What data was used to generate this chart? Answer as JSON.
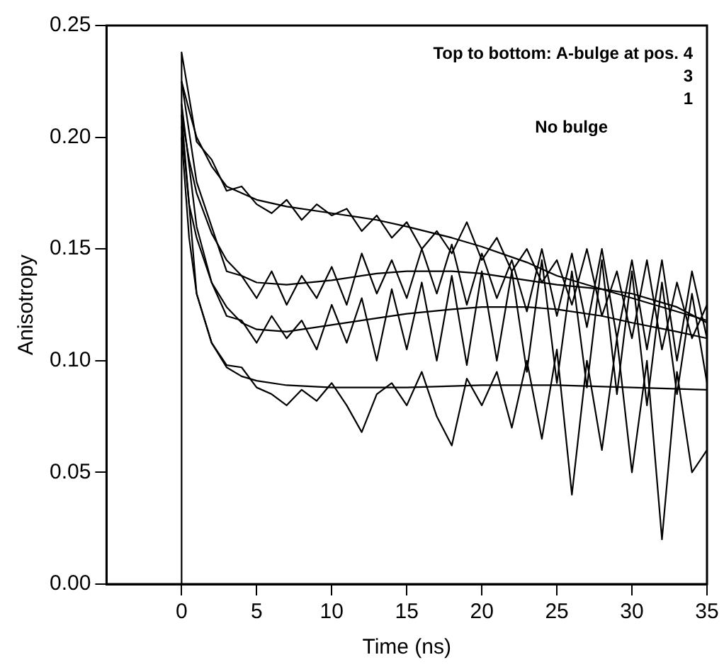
{
  "chart_data": {
    "type": "line",
    "xlabel": "Time (ns)",
    "ylabel": "Anisotropy",
    "xlim": [
      -5,
      35
    ],
    "xticks": [
      0,
      5,
      10,
      15,
      20,
      25,
      30,
      35
    ],
    "ylim": [
      0,
      0.25
    ],
    "yticks": [
      {
        "value": 0,
        "label": "0.00"
      },
      {
        "value": 0.05,
        "label": "0.05"
      },
      {
        "value": 0.1,
        "label": "0.10"
      },
      {
        "value": 0.15,
        "label": "0.15"
      },
      {
        "value": 0.2,
        "label": "0.20"
      },
      0.25
    ],
    "grid": false,
    "legend": false,
    "marker": "none",
    "line_style": "solid",
    "annotations": [
      "Top to bottom: A-bulge at pos. 4",
      "3",
      "1",
      "No bulge"
    ],
    "series": [
      {
        "type": "line",
        "color": "#000000",
        "x": [
          0,
          0,
          1,
          2,
          3,
          4,
          5,
          6,
          7,
          8,
          9,
          10,
          11,
          12,
          13,
          14,
          15,
          16,
          17,
          18,
          19,
          20,
          21,
          22,
          23,
          24,
          25,
          26,
          27,
          28,
          29,
          30,
          31,
          32,
          33,
          34,
          35
        ],
        "values": [
          0,
          0.238,
          0.198,
          0.19,
          0.176,
          0.178,
          0.17,
          0.166,
          0.172,
          0.163,
          0.17,
          0.165,
          0.168,
          0.158,
          0.165,
          0.155,
          0.162,
          0.15,
          0.158,
          0.148,
          0.162,
          0.145,
          0.155,
          0.14,
          0.15,
          0.135,
          0.145,
          0.125,
          0.15,
          0.12,
          0.14,
          0.11,
          0.145,
          0.105,
          0.135,
          0.11,
          0.125
        ]
      },
      {
        "type": "line",
        "color": "#000000",
        "x": [
          0,
          1,
          2,
          3,
          4,
          5,
          6,
          7,
          8,
          9,
          10,
          11,
          12,
          13,
          14,
          15,
          16,
          17,
          18,
          19,
          20,
          21,
          22,
          23,
          24,
          25,
          26,
          27,
          28,
          29,
          30,
          31,
          32,
          33,
          34,
          35
        ],
        "values": [
          0.225,
          0.18,
          0.16,
          0.14,
          0.138,
          0.128,
          0.14,
          0.125,
          0.138,
          0.128,
          0.142,
          0.125,
          0.148,
          0.13,
          0.145,
          0.128,
          0.15,
          0.13,
          0.152,
          0.125,
          0.148,
          0.128,
          0.145,
          0.122,
          0.15,
          0.12,
          0.148,
          0.115,
          0.15,
          0.11,
          0.145,
          0.105,
          0.145,
          0.1,
          0.14,
          0.11
        ]
      },
      {
        "type": "line",
        "color": "#000000",
        "x": [
          0,
          1,
          2,
          3,
          4,
          5,
          6,
          7,
          8,
          9,
          10,
          11,
          12,
          13,
          14,
          15,
          16,
          17,
          18,
          19,
          20,
          21,
          22,
          23,
          24,
          25,
          26,
          27,
          28,
          29,
          30,
          31,
          32,
          33,
          34,
          35
        ],
        "values": [
          0.215,
          0.16,
          0.135,
          0.12,
          0.118,
          0.108,
          0.12,
          0.11,
          0.118,
          0.105,
          0.125,
          0.108,
          0.128,
          0.1,
          0.132,
          0.105,
          0.135,
          0.1,
          0.138,
          0.098,
          0.14,
          0.1,
          0.14,
          0.095,
          0.145,
          0.09,
          0.14,
          0.088,
          0.145,
          0.085,
          0.14,
          0.08,
          0.135,
          0.085,
          0.13,
          0.09
        ]
      },
      {
        "type": "line",
        "color": "#000000",
        "x": [
          0,
          1,
          2,
          3,
          4,
          5,
          6,
          7,
          8,
          9,
          10,
          11,
          12,
          13,
          14,
          15,
          16,
          17,
          18,
          19,
          20,
          21,
          22,
          23,
          24,
          25,
          26,
          27,
          28,
          29,
          30,
          31,
          32,
          33,
          34,
          35
        ],
        "values": [
          0.21,
          0.13,
          0.108,
          0.098,
          0.097,
          0.088,
          0.085,
          0.08,
          0.087,
          0.082,
          0.09,
          0.08,
          0.068,
          0.085,
          0.09,
          0.08,
          0.095,
          0.075,
          0.062,
          0.092,
          0.08,
          0.095,
          0.07,
          0.1,
          0.065,
          0.105,
          0.04,
          0.1,
          0.06,
          0.11,
          0.05,
          0.1,
          0.02,
          0.095,
          0.05,
          0.06
        ]
      },
      {
        "type": "line",
        "color": "#000000",
        "x": [
          0,
          0.5,
          1,
          2,
          3,
          5,
          7,
          10,
          13,
          15,
          18,
          20,
          23,
          25,
          28,
          30,
          33,
          35
        ],
        "values": [
          0.225,
          0.212,
          0.2,
          0.187,
          0.178,
          0.172,
          0.169,
          0.166,
          0.163,
          0.16,
          0.155,
          0.151,
          0.144,
          0.138,
          0.132,
          0.128,
          0.122,
          0.118
        ]
      },
      {
        "type": "line",
        "color": "#000000",
        "x": [
          0,
          0.5,
          1,
          2,
          3,
          4,
          5,
          7,
          10,
          13,
          15,
          18,
          20,
          23,
          25,
          28,
          30,
          33,
          35
        ],
        "values": [
          0.21,
          0.19,
          0.175,
          0.157,
          0.145,
          0.138,
          0.135,
          0.134,
          0.136,
          0.139,
          0.14,
          0.14,
          0.139,
          0.136,
          0.134,
          0.132,
          0.13,
          0.124,
          0.117
        ]
      },
      {
        "type": "line",
        "color": "#000000",
        "x": [
          0,
          0.5,
          1,
          2,
          3,
          4,
          5,
          7,
          10,
          13,
          15,
          18,
          20,
          23,
          25,
          28,
          30,
          33,
          35
        ],
        "values": [
          0.205,
          0.17,
          0.155,
          0.135,
          0.124,
          0.117,
          0.114,
          0.113,
          0.116,
          0.119,
          0.121,
          0.123,
          0.124,
          0.124,
          0.123,
          0.12,
          0.117,
          0.113,
          0.11
        ]
      },
      {
        "type": "line",
        "color": "#000000",
        "x": [
          0,
          0.5,
          1,
          2,
          3,
          4,
          5,
          7,
          10,
          15,
          20,
          25,
          30,
          35
        ],
        "values": [
          0.2,
          0.155,
          0.13,
          0.108,
          0.097,
          0.093,
          0.091,
          0.089,
          0.088,
          0.088,
          0.089,
          0.089,
          0.088,
          0.087
        ]
      }
    ]
  }
}
